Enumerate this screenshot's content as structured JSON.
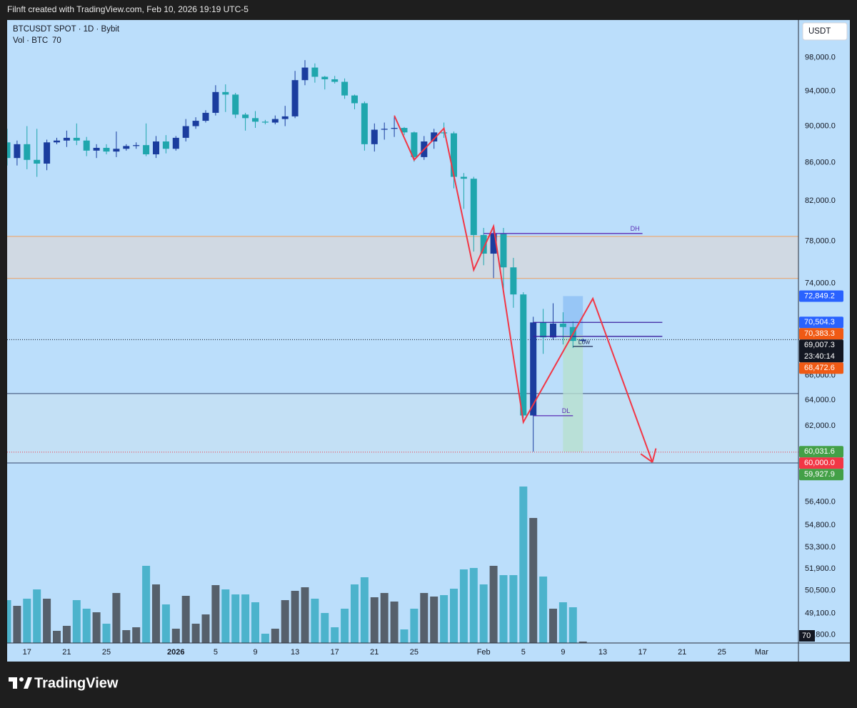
{
  "header": {
    "text": "Filnft created with TradingView.com, Feb 10, 2026 19:19 UTC-5"
  },
  "footer": {
    "brand": "TradingView"
  },
  "chart_data": {
    "type": "candlestick",
    "title": "BTCUSDT SPOT · 1D · Bybit",
    "currency": "USDT",
    "log_scale": true,
    "background": "#bbdefb",
    "up_color": "#1b3d9e",
    "down_color": "#1fa6ad",
    "categories": [
      "Dec 15",
      "Dec 16",
      "Dec 17",
      "Dec 18",
      "Dec 19",
      "Dec 20",
      "Dec 21",
      "Dec 22",
      "Dec 23",
      "Dec 24",
      "Dec 25",
      "Dec 26",
      "Dec 27",
      "Dec 28",
      "Dec 29",
      "Dec 30",
      "Dec 31",
      "Jan 1",
      "Jan 2",
      "Jan 3",
      "Jan 4",
      "Jan 5",
      "Jan 6",
      "Jan 7",
      "Jan 8",
      "Jan 9",
      "Jan 10",
      "Jan 11",
      "Jan 12",
      "Jan 13",
      "Jan 14",
      "Jan 15",
      "Jan 16",
      "Jan 17",
      "Jan 18",
      "Jan 19",
      "Jan 20",
      "Jan 21",
      "Jan 22",
      "Jan 23",
      "Jan 24",
      "Jan 25",
      "Jan 26",
      "Jan 27",
      "Jan 28",
      "Jan 29",
      "Jan 30",
      "Jan 31",
      "Feb 1",
      "Feb 2",
      "Feb 3",
      "Feb 4",
      "Feb 5",
      "Feb 6",
      "Feb 7",
      "Feb 8",
      "Feb 9",
      "Feb 10",
      "Feb 11"
    ],
    "open": [
      88200,
      86500,
      88000,
      86300,
      85900,
      88200,
      88400,
      88700,
      88400,
      87300,
      87600,
      87200,
      87500,
      87800,
      87900,
      86900,
      88300,
      87500,
      88700,
      90000,
      90600,
      91500,
      93900,
      93600,
      91300,
      90900,
      90500,
      90400,
      90800,
      91100,
      95300,
      96800,
      95700,
      95400,
      95100,
      93500,
      92600,
      88000,
      89600,
      89700,
      89800,
      89300,
      86600,
      88300,
      89300,
      89200,
      84500,
      84300,
      78600,
      76800,
      78700,
      75500,
      73000,
      62800,
      70500,
      69200,
      70400,
      70100,
      68900
    ],
    "high": [
      89700,
      88400,
      90000,
      89700,
      88500,
      88700,
      89500,
      90300,
      88800,
      88000,
      88000,
      89400,
      88000,
      88200,
      90300,
      88900,
      89000,
      88900,
      90800,
      91000,
      91800,
      94700,
      94800,
      93800,
      91500,
      91700,
      90700,
      91200,
      92300,
      96400,
      97700,
      97300,
      95800,
      95800,
      95500,
      93600,
      92800,
      90300,
      90400,
      91000,
      89900,
      89400,
      88900,
      89700,
      90400,
      89400,
      84900,
      84500,
      79300,
      79200,
      79300,
      76400,
      73200,
      71000,
      71700,
      72200,
      71400,
      70600,
      69100
    ],
    "low": [
      85700,
      85700,
      85300,
      84500,
      85200,
      88000,
      87700,
      87900,
      86700,
      86500,
      86900,
      86600,
      87300,
      87500,
      86700,
      86500,
      87000,
      87300,
      88300,
      89700,
      90400,
      91200,
      91600,
      90900,
      89500,
      89800,
      90200,
      90200,
      90000,
      90900,
      94700,
      95000,
      94200,
      94900,
      93100,
      91900,
      87300,
      87200,
      88500,
      88800,
      89000,
      86100,
      86300,
      87500,
      88700,
      83300,
      81200,
      77000,
      75700,
      74500,
      73000,
      71800,
      62600,
      60031.6,
      67800,
      69000,
      68600,
      68300,
      68800
    ],
    "close": [
      86500,
      88000,
      86300,
      85900,
      88200,
      88400,
      88700,
      88400,
      87300,
      87600,
      87200,
      87500,
      87800,
      87900,
      86900,
      88300,
      87500,
      88700,
      90000,
      90600,
      91500,
      93900,
      93600,
      91300,
      90900,
      90500,
      90400,
      90800,
      91100,
      95300,
      96800,
      95700,
      95400,
      95100,
      93500,
      92600,
      88000,
      89600,
      89700,
      89800,
      89300,
      86600,
      88300,
      89300,
      89200,
      84500,
      84300,
      78600,
      76800,
      78700,
      75500,
      73000,
      62800,
      70500,
      69200,
      70400,
      70100,
      68900,
      69007.3
    ],
    "volume": {
      "name": "Vol · BTC",
      "up_color": "#56606b",
      "down_color": "#4cb3cc",
      "values": [
        2100,
        1820,
        2170,
        2625,
        2170,
        595,
        840,
        2100,
        1680,
        1505,
        945,
        2450,
        630,
        770,
        3780,
        2870,
        1890,
        700,
        2310,
        945,
        1400,
        2835,
        2625,
        2380,
        2380,
        1995,
        455,
        700,
        2100,
        2555,
        2730,
        2170,
        1470,
        770,
        1680,
        2870,
        3220,
        2240,
        2450,
        2030,
        665,
        1680,
        2450,
        2275,
        2345,
        2660,
        3605,
        3675,
        2870,
        3780,
        3325,
        3325,
        7665,
        6125,
        3255,
        1680,
        1995,
        1750,
        70
      ]
    },
    "ylim": [
      47320,
      102700
    ],
    "yticks": [
      {
        "value": 98000,
        "label": "98,000.0"
      },
      {
        "value": 94000,
        "label": "94,000.0"
      },
      {
        "value": 90000,
        "label": "90,000.0"
      },
      {
        "value": 86000,
        "label": "86,000.0"
      },
      {
        "value": 82000,
        "label": "82,000.0"
      },
      {
        "value": 78000,
        "label": "78,000.0"
      },
      {
        "value": 74000,
        "label": "74,000.0"
      },
      {
        "value": 66000,
        "label": "66,000.0"
      },
      {
        "value": 64000,
        "label": "64,000.0"
      },
      {
        "value": 62000,
        "label": "62,000.0"
      },
      {
        "value": 56400,
        "label": "56,400.0"
      },
      {
        "value": 54800,
        "label": "54,800.0"
      },
      {
        "value": 53300,
        "label": "53,300.0"
      },
      {
        "value": 51900,
        "label": "51,900.0"
      },
      {
        "value": 50500,
        "label": "50,500.0"
      },
      {
        "value": 49100,
        "label": "49,100.0"
      },
      {
        "value": 47800,
        "label": "47,800.0"
      }
    ],
    "xticks": [
      {
        "value": "Dec 17",
        "label": "17"
      },
      {
        "value": "Dec 21",
        "label": "21"
      },
      {
        "value": "Dec 25",
        "label": "25"
      },
      {
        "value": "Jan 1",
        "label": "2026"
      },
      {
        "value": "Jan 5",
        "label": "5"
      },
      {
        "value": "Jan 9",
        "label": "9"
      },
      {
        "value": "Jan 13",
        "label": "13"
      },
      {
        "value": "Jan 17",
        "label": "17"
      },
      {
        "value": "Jan 21",
        "label": "21"
      },
      {
        "value": "Jan 25",
        "label": "25"
      },
      {
        "value": "Feb 1",
        "label": "Feb"
      },
      {
        "value": "Feb 5",
        "label": "5"
      },
      {
        "value": "Feb 9",
        "label": "9"
      },
      {
        "value": "Feb 13",
        "label": "13"
      },
      {
        "value": "Feb 17",
        "label": "17"
      },
      {
        "value": "Feb 21",
        "label": "21"
      },
      {
        "value": "Feb 25",
        "label": "25"
      },
      {
        "value": "Mar 1",
        "label": "Mar"
      }
    ],
    "zones": [
      {
        "from": 74470,
        "to": 78470,
        "color": "#d3d8de",
        "border": "#f0a060"
      },
      {
        "from": 59200,
        "to": 64530,
        "color": "#c4e0f3",
        "border": "#34476e"
      }
    ],
    "levels": [
      {
        "label": "DH",
        "value": 78750,
        "from": "Feb 1",
        "to": "Feb 17",
        "color": "#5b2bb5"
      },
      {
        "label": "DL",
        "value": 62780,
        "from": "Feb 6",
        "to": "Feb 10",
        "color": "#5b2bb5"
      },
      {
        "value": 70504.3,
        "from": "Feb 6",
        "to": "Feb 19",
        "color": "#3b1f9e"
      },
      {
        "value": 69290,
        "from": "Feb 6",
        "to": "Feb 19",
        "color": "#3b1f9e"
      },
      {
        "label": "Low",
        "value": 68430,
        "from": "Feb 10",
        "to": "Feb 12",
        "color": "#1e2a55"
      }
    ],
    "position": {
      "from": "Feb 9",
      "to": "Feb 11",
      "top": 72849.2,
      "entry": 69400,
      "bottom": 60031.6,
      "top_color": "#8fbff5",
      "bottom_color": "#b6e0d0"
    },
    "drawing": {
      "color": "#f23645",
      "x": [
        "Jan 23",
        "Jan 25",
        "Jan 28",
        "Jan 31",
        "Feb 2",
        "Feb 5",
        "Feb 12",
        "Feb 18"
      ],
      "y": [
        91190,
        86300,
        89750,
        75260,
        79460,
        62280,
        72630,
        59250
      ]
    },
    "price_lines": [
      {
        "value": 69007.3,
        "color": "#131722"
      },
      {
        "value": 60000,
        "color": "#f23645"
      }
    ],
    "price_tags": [
      {
        "value": 72849.2,
        "label": "72,849.2",
        "color": "#2962ff"
      },
      {
        "value": 70504.3,
        "label": "70,504.3",
        "color": "#2962ff"
      },
      {
        "value": 70383.3,
        "label": "70,383.3",
        "color": "#f05a14"
      },
      {
        "value": 69007.3,
        "label": "69,007.3",
        "color": "#131722",
        "countdown": "23:40:14"
      },
      {
        "value": 68472.6,
        "label": "68,472.6",
        "color": "#f05a14"
      },
      {
        "value": 60031.6,
        "label": "60,031.6",
        "color": "#43a047"
      },
      {
        "value": 60000,
        "label": "60,000.0",
        "color": "#f23645"
      },
      {
        "value": 59927.9,
        "label": "59,927.9",
        "color": "#43a047"
      }
    ]
  }
}
